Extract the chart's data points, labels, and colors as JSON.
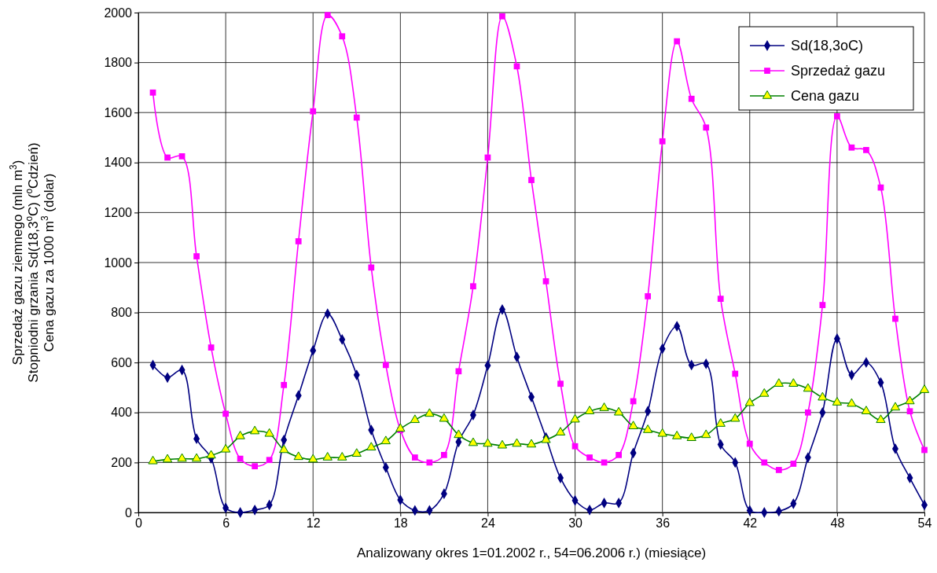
{
  "chart_data": {
    "type": "line",
    "xlabel": "Analizowany okres 1=01.2002 r., 54=06.2006 r.)  (miesiące)",
    "ylabel": "Sprzedaż gazu ziemnego (mln m$^{3}$)\nStopniodni grzania Sd(18,3$^{o}$C)  ($^{o}$Cdzień)\nCena gazu za 1000 m$^{3}$ (dolar)",
    "x": [
      1,
      2,
      3,
      4,
      5,
      6,
      7,
      8,
      9,
      10,
      11,
      12,
      13,
      14,
      15,
      16,
      17,
      18,
      19,
      20,
      21,
      22,
      23,
      24,
      25,
      26,
      27,
      28,
      29,
      30,
      31,
      32,
      33,
      34,
      35,
      36,
      37,
      38,
      39,
      40,
      41,
      42,
      43,
      44,
      45,
      46,
      47,
      48,
      49,
      50,
      51,
      52,
      53,
      54
    ],
    "xlim": [
      0,
      54
    ],
    "xticks": [
      0,
      6,
      12,
      18,
      24,
      30,
      36,
      42,
      48,
      54
    ],
    "ylim": [
      0,
      2000
    ],
    "yticks": [
      0,
      200,
      400,
      600,
      800,
      1000,
      1200,
      1400,
      1600,
      1800,
      2000
    ],
    "grid": true,
    "legend": "top right",
    "series": [
      {
        "name": "Sd(18,3oC)",
        "color": "#000080",
        "marker": "diamond",
        "values": [
          590,
          540,
          570,
          295,
          217,
          18,
          0,
          10,
          30,
          290,
          468,
          648,
          795,
          692,
          550,
          330,
          180,
          50,
          8,
          8,
          75,
          282,
          390,
          588,
          812,
          622,
          462,
          300,
          138,
          48,
          10,
          38,
          38,
          238,
          405,
          655,
          745,
          590,
          595,
          272,
          200,
          8,
          0,
          5,
          35,
          220,
          400,
          695,
          550,
          600,
          520,
          255,
          138,
          30
        ]
      },
      {
        "name": "Sprzedaż gazu",
        "color": "#ff00ff",
        "marker": "square",
        "values": [
          1680,
          1420,
          1425,
          1025,
          660,
          395,
          215,
          185,
          210,
          510,
          1085,
          1605,
          1990,
          1905,
          1580,
          980,
          590,
          330,
          220,
          200,
          230,
          565,
          905,
          1420,
          1985,
          1785,
          1330,
          925,
          515,
          265,
          220,
          200,
          230,
          445,
          865,
          1485,
          1885,
          1655,
          1540,
          855,
          555,
          275,
          200,
          170,
          195,
          400,
          830,
          1585,
          1460,
          1450,
          1300,
          775,
          405,
          250
        ]
      },
      {
        "name": "Cena gazu",
        "color": "#008000",
        "marker": "triangle",
        "values": [
          205,
          212,
          215,
          215,
          228,
          252,
          305,
          325,
          315,
          250,
          222,
          212,
          220,
          220,
          235,
          260,
          285,
          335,
          370,
          395,
          375,
          310,
          278,
          275,
          268,
          275,
          272,
          290,
          320,
          372,
          405,
          418,
          400,
          345,
          330,
          315,
          305,
          298,
          310,
          355,
          375,
          438,
          475,
          515,
          515,
          495,
          460,
          440,
          435,
          405,
          370,
          420,
          445,
          490
        ]
      }
    ]
  }
}
